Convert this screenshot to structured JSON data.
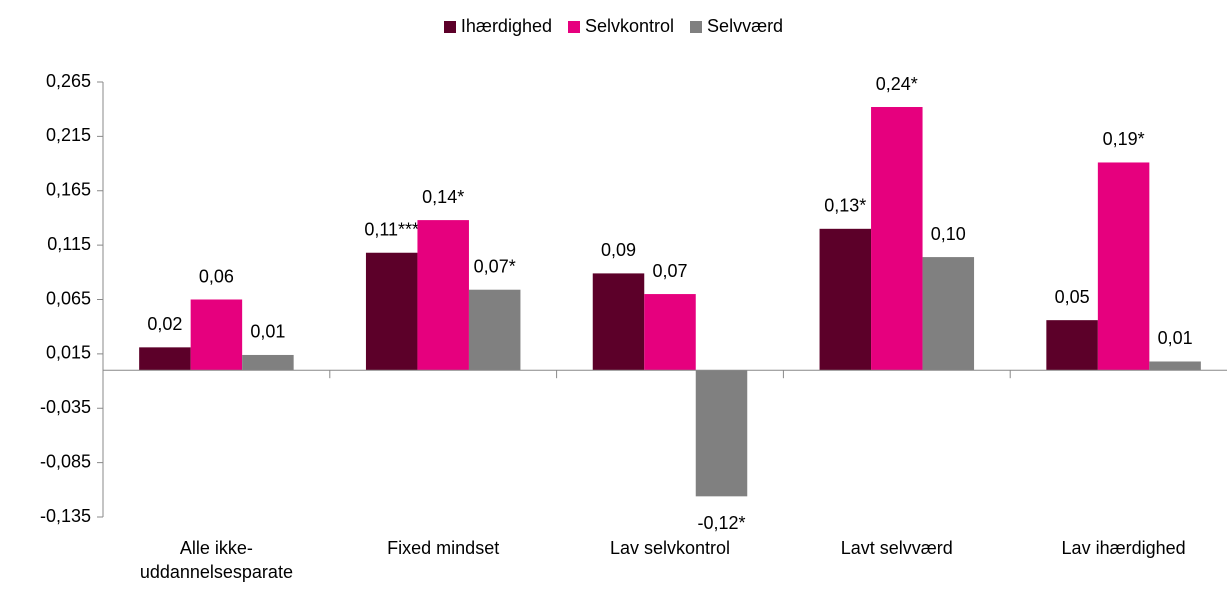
{
  "chart_data": {
    "type": "bar",
    "categories": [
      "Alle ikke-uddannelsesparate",
      "Fixed mindset",
      "Lav selvkontrol",
      "Lavt selvværd",
      "Lav ihærdighed"
    ],
    "series": [
      {
        "name": "Ihærdighed",
        "color": "#5c0029",
        "values": [
          0.021,
          0.108,
          0.089,
          0.13,
          0.046
        ],
        "value_labels": [
          "0,02",
          "0,11***",
          "0,09",
          "0,13*",
          "0,05"
        ]
      },
      {
        "name": "Selvkontrol",
        "color": "#e6007e",
        "values": [
          0.065,
          0.138,
          0.07,
          0.242,
          0.191
        ],
        "value_labels": [
          "0,06",
          "0,14*",
          "0,07",
          "0,24*",
          "0,19*"
        ]
      },
      {
        "name": "Selvværd",
        "color": "#808080",
        "values": [
          0.014,
          0.074,
          -0.116,
          0.104,
          0.008
        ],
        "value_labels": [
          "0,01",
          "0,07*",
          "-0,12*",
          "0,10",
          "0,01"
        ]
      }
    ],
    "ylim": [
      -0.135,
      0.265
    ],
    "yticks": [
      {
        "value": -0.135,
        "label": "-0,135"
      },
      {
        "value": -0.085,
        "label": "-0,085"
      },
      {
        "value": -0.035,
        "label": "-0,035"
      },
      {
        "value": 0.015,
        "label": "0,015"
      },
      {
        "value": 0.065,
        "label": "0,065"
      },
      {
        "value": 0.115,
        "label": "0,115"
      },
      {
        "value": 0.165,
        "label": "0,165"
      },
      {
        "value": 0.215,
        "label": "0,215"
      },
      {
        "value": 0.265,
        "label": "0,265"
      }
    ],
    "legend": "top",
    "grid": false
  }
}
